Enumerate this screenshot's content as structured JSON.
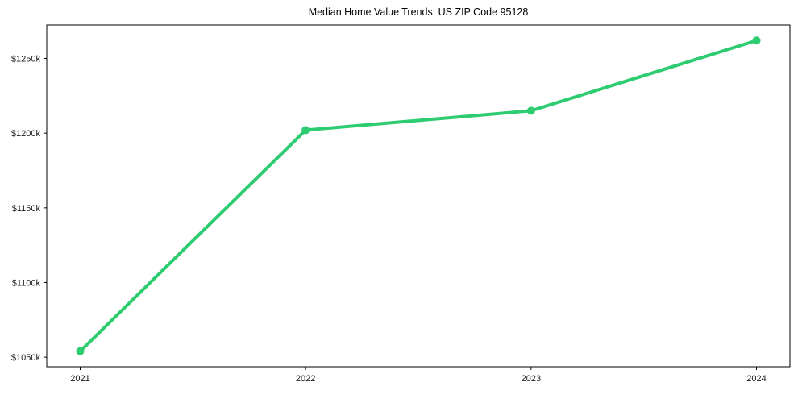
{
  "chart_data": {
    "type": "line",
    "title": "Median Home Value Trends: US ZIP Code 95128",
    "x": [
      2021,
      2022,
      2023,
      2024
    ],
    "series": [
      {
        "name": "Median Home Value",
        "values": [
          1054,
          1202,
          1215,
          1262
        ]
      }
    ],
    "unit": "thousand USD",
    "xtick_labels": [
      "2021",
      "2022",
      "2023",
      "2024"
    ],
    "ytick_values": [
      1050,
      1100,
      1150,
      1200,
      1250
    ],
    "ytick_labels": [
      "$1050k",
      "$1100k",
      "$1150k",
      "$1200k",
      "$1250k"
    ],
    "xlabel": "",
    "ylabel": "",
    "ylim": [
      1043.6,
      1272.4
    ],
    "xlim": [
      2021,
      2024
    ],
    "grid": false,
    "legend_position": "none",
    "line_color": "#2ecc71",
    "marker": "circle",
    "axis_color": "#000000",
    "tick_text_color": "#1a1a1a",
    "background_color": "#ffffff"
  }
}
